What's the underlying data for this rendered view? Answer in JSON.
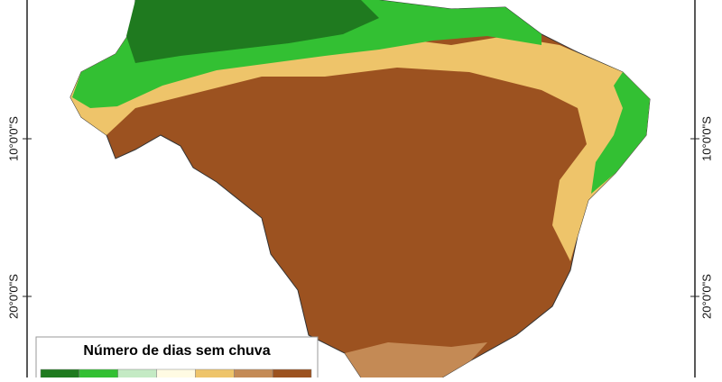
{
  "axis_labels": {
    "left": [
      "10°0'0\"S",
      "20°0'0\"S"
    ],
    "right": [
      "10°0'0\"S",
      "20°0'0\"S"
    ]
  },
  "legend": {
    "title": "Número de dias sem chuva",
    "colors": [
      "#1f7a1f",
      "#33c033",
      "#c4eac4",
      "#fffbe3",
      "#eec46a",
      "#c48a55",
      "#9c5220"
    ]
  }
}
